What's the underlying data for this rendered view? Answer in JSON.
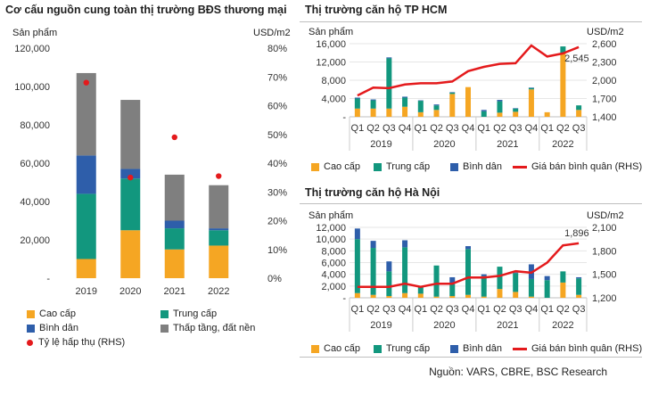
{
  "source": "Nguồn: VARS, CBRE, BSC Research",
  "colors": {
    "cao_cap": "#F5A623",
    "trung_cap": "#12977E",
    "binh_dan": "#2E5EAA",
    "thap_tang": "#7F7F7F",
    "rhs": "#E41A1C"
  },
  "chart_data": [
    {
      "type": "bar",
      "title": "Cơ cấu nguồn cung toàn thị trường BĐS thương mại",
      "ylabel": "Sản phẩm",
      "y2label": "USD/m2",
      "categories": [
        "2019",
        "2020",
        "2021",
        "2022"
      ],
      "ylim": [
        0,
        120000
      ],
      "y_ticks": [
        "-",
        "20,000",
        "40,000",
        "60,000",
        "80,000",
        "100,000",
        "120,000"
      ],
      "y2lim": [
        0,
        80
      ],
      "y2_ticks": [
        "0%",
        "10%",
        "20%",
        "30%",
        "40%",
        "50%",
        "60%",
        "70%",
        "80%"
      ],
      "stacked": true,
      "series": [
        {
          "name": "Cao cấp",
          "values": [
            10000,
            25000,
            15000,
            17000
          ]
        },
        {
          "name": "Trung cấp",
          "values": [
            34000,
            27000,
            11000,
            8000
          ]
        },
        {
          "name": "Bình dân",
          "values": [
            20000,
            5000,
            4000,
            1000
          ]
        },
        {
          "name": "Thấp tầng, đất nền",
          "values": [
            43000,
            36000,
            24000,
            22500
          ]
        }
      ],
      "rhs_series": {
        "name": "Tỷ lệ hấp thụ (RHS)",
        "type": "scatter",
        "values": [
          68,
          35,
          49,
          35.5
        ]
      },
      "legend": [
        "Cao cấp",
        "Trung cấp",
        "Bình dân",
        "Thấp tầng, đất nền",
        "Tỷ lệ hấp thụ (RHS)"
      ]
    },
    {
      "type": "bar",
      "title": "Thị trường căn hộ TP HCM",
      "ylabel": "Sản phẩm",
      "y2label": "USD/m2",
      "quarters": [
        "Q1",
        "Q2",
        "Q3",
        "Q4",
        "Q1",
        "Q2",
        "Q3",
        "Q4",
        "Q1",
        "Q2",
        "Q3",
        "Q4",
        "Q1",
        "Q2",
        "Q3"
      ],
      "years": [
        "2019",
        "2020",
        "2021",
        "2022"
      ],
      "ylim": [
        0,
        16000
      ],
      "y_ticks": [
        "-",
        "4,000",
        "8,000",
        "12,000",
        "16,000"
      ],
      "y2lim": [
        1400,
        2600
      ],
      "y2_ticks": [
        "1,400",
        "1,700",
        "2,000",
        "2,300",
        "2,600"
      ],
      "stacked": true,
      "series": [
        {
          "name": "Cao cấp",
          "values": [
            1800,
            1800,
            1800,
            2200,
            1000,
            1500,
            5000,
            6500,
            0,
            900,
            1100,
            6000,
            1000,
            14000,
            1500
          ]
        },
        {
          "name": "Trung cấp",
          "values": [
            2200,
            1800,
            11000,
            2000,
            2500,
            1000,
            300,
            0,
            1200,
            2500,
            700,
            300,
            0,
            1400,
            1000
          ]
        },
        {
          "name": "Bình dân",
          "values": [
            200,
            200,
            200,
            200,
            100,
            200,
            100,
            0,
            300,
            300,
            100,
            100,
            0,
            0,
            0
          ]
        }
      ],
      "rhs_series": {
        "name": "Giá bán bình quân (RHS)",
        "type": "line",
        "values": [
          1750,
          1880,
          1870,
          1930,
          1950,
          1950,
          1980,
          2150,
          2220,
          2270,
          2280,
          2570,
          2390,
          2440,
          2545
        ]
      },
      "annotation": "2,545",
      "legend": [
        "Cao cấp",
        "Trung cấp",
        "Bình dân",
        "Giá bán bình quân (RHS)"
      ]
    },
    {
      "type": "bar",
      "title": "Thị trường căn hộ Hà Nội",
      "ylabel": "Sản phẩm",
      "y2label": "USD/m2",
      "quarters": [
        "Q1",
        "Q2",
        "Q3",
        "Q4",
        "Q1",
        "Q2",
        "Q3",
        "Q4",
        "Q1",
        "Q2",
        "Q3",
        "Q4",
        "Q1",
        "Q2",
        "Q3"
      ],
      "years": [
        "2019",
        "2020",
        "2021",
        "2022"
      ],
      "ylim": [
        0,
        12000
      ],
      "y_ticks": [
        "-",
        "2,000",
        "4,000",
        "6,000",
        "8,000",
        "10,000",
        "12,000"
      ],
      "y2lim": [
        1200,
        2100
      ],
      "y2_ticks": [
        "1,200",
        "1,500",
        "1,800",
        "2,100"
      ],
      "stacked": true,
      "series": [
        {
          "name": "Cao cấp",
          "values": [
            800,
            500,
            300,
            800,
            700,
            200,
            300,
            500,
            200,
            1500,
            1000,
            200,
            0,
            2600,
            500
          ]
        },
        {
          "name": "Trung cấp",
          "values": [
            9200,
            8000,
            4200,
            7800,
            1100,
            5300,
            2000,
            7800,
            3500,
            3800,
            3200,
            3000,
            3000,
            1900,
            2800
          ]
        },
        {
          "name": "Bình dân",
          "values": [
            1800,
            1200,
            1700,
            1200,
            200,
            0,
            1200,
            500,
            300,
            0,
            100,
            2500,
            700,
            0,
            200
          ]
        }
      ],
      "rhs_series": {
        "name": "Giá bán bình quân (RHS)",
        "type": "line",
        "values": [
          1340,
          1340,
          1340,
          1380,
          1340,
          1380,
          1380,
          1460,
          1460,
          1480,
          1540,
          1520,
          1650,
          1870,
          1896
        ]
      },
      "annotation": "1,896",
      "legend": [
        "Cao cấp",
        "Trung cấp",
        "Bình dân",
        "Giá bán bình quân (RHS)"
      ]
    }
  ]
}
